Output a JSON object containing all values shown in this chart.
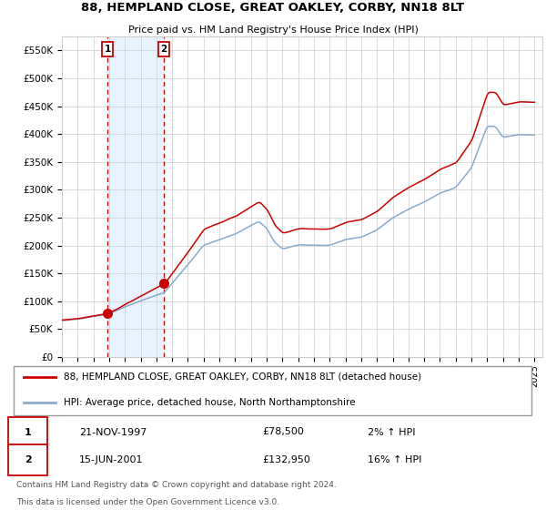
{
  "title1": "88, HEMPLAND CLOSE, GREAT OAKLEY, CORBY, NN18 8LT",
  "title2": "Price paid vs. HM Land Registry's House Price Index (HPI)",
  "ylabel_ticks": [
    "£0",
    "£50K",
    "£100K",
    "£150K",
    "£200K",
    "£250K",
    "£300K",
    "£350K",
    "£400K",
    "£450K",
    "£500K",
    "£550K"
  ],
  "ylabel_values": [
    0,
    50000,
    100000,
    150000,
    200000,
    250000,
    300000,
    350000,
    400000,
    450000,
    500000,
    550000
  ],
  "ylim": [
    0,
    575000
  ],
  "xlim_start": 1995.0,
  "xlim_end": 2025.5,
  "sale1_date": 1997.9,
  "sale1_price": 78500,
  "sale1_label": "1",
  "sale1_text": "21-NOV-1997",
  "sale1_price_text": "£78,500",
  "sale1_hpi": "2% ↑ HPI",
  "sale2_date": 2001.46,
  "sale2_price": 132950,
  "sale2_label": "2",
  "sale2_text": "15-JUN-2001",
  "sale2_price_text": "£132,950",
  "sale2_hpi": "16% ↑ HPI",
  "line_color_property": "#cc0000",
  "line_color_hpi": "#88aacc",
  "dot_color": "#cc0000",
  "vline_color": "#cc0000",
  "shade_color": "#ddeeff",
  "legend_label1": "88, HEMPLAND CLOSE, GREAT OAKLEY, CORBY, NN18 8LT (detached house)",
  "legend_label2": "HPI: Average price, detached house, North Northamptonshire",
  "footnote1": "Contains HM Land Registry data © Crown copyright and database right 2024.",
  "footnote2": "This data is licensed under the Open Government Licence v3.0.",
  "xticks": [
    1995,
    1996,
    1997,
    1998,
    1999,
    2000,
    2001,
    2002,
    2003,
    2004,
    2005,
    2006,
    2007,
    2008,
    2009,
    2010,
    2011,
    2012,
    2013,
    2014,
    2015,
    2016,
    2017,
    2018,
    2019,
    2020,
    2021,
    2022,
    2023,
    2024,
    2025
  ]
}
